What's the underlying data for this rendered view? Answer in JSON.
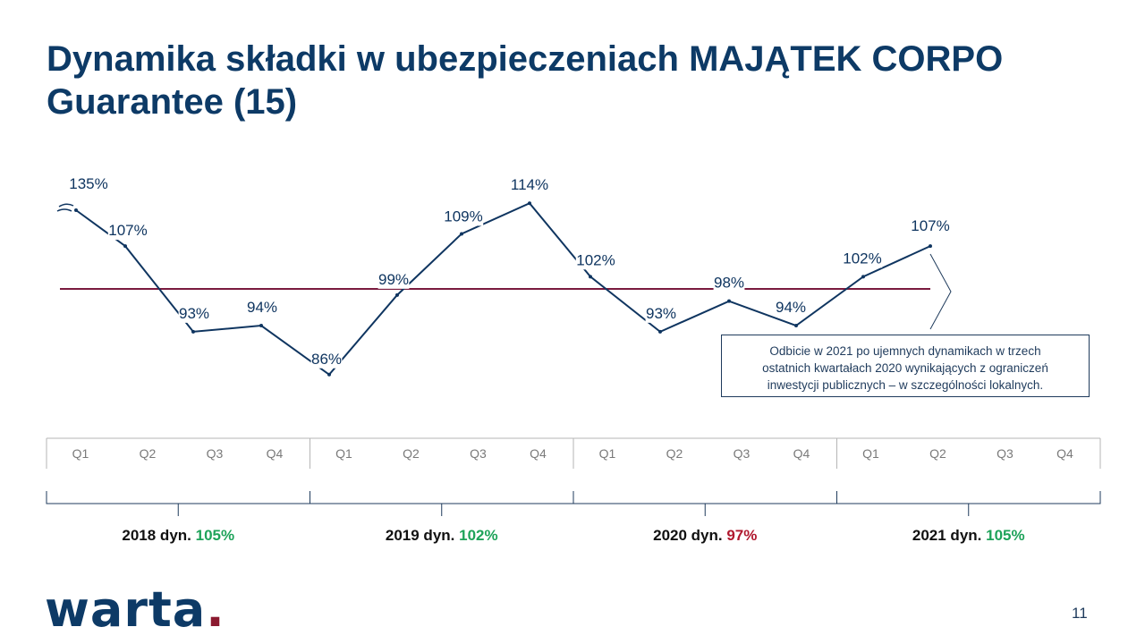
{
  "title": "Dynamika składki w ubezpieczeniach MAJĄTEK CORPO Guarantee (15)",
  "chart_data": {
    "type": "line",
    "x": [
      "Q1",
      "Q2",
      "Q3",
      "Q4",
      "Q1",
      "Q2",
      "Q3",
      "Q4",
      "Q1",
      "Q2",
      "Q3",
      "Q4",
      "Q1",
      "Q2"
    ],
    "values": [
      135,
      107,
      93,
      94,
      86,
      99,
      109,
      114,
      102,
      93,
      98,
      94,
      102,
      107
    ],
    "value_labels": [
      "135%",
      "107%",
      "93%",
      "94%",
      "86%",
      "99%",
      "109%",
      "114%",
      "102%",
      "93%",
      "98%",
      "94%",
      "102%",
      "107%"
    ],
    "axis_break_on_first_point": true,
    "reference_line": 100,
    "quarter_labels": [
      "Q1",
      "Q2",
      "Q3",
      "Q4",
      "Q1",
      "Q2",
      "Q3",
      "Q4",
      "Q1",
      "Q2",
      "Q3",
      "Q4",
      "Q1",
      "Q2",
      "Q3",
      "Q4"
    ],
    "years": [
      {
        "label": "2018 dyn.",
        "value": "105%",
        "color": "#1fa35a"
      },
      {
        "label": "2019 dyn.",
        "value": "102%",
        "color": "#1fa35a"
      },
      {
        "label": "2020 dyn.",
        "value": "97%",
        "color": "#b0182e"
      },
      {
        "label": "2021 dyn.",
        "value": "105%",
        "color": "#1fa35a"
      }
    ],
    "colors": {
      "line": "#0f3560",
      "reference": "#7a1a3e"
    }
  },
  "note": {
    "line1": "Odbicie w 2021 po ujemnych  dynamikach  w trzech",
    "line2": "ostatnich kwartałach 2020 wynikających  z ograniczeń",
    "line3": "inwestycji  publicznych  – w szczególności lokalnych."
  },
  "logo": {
    "text": "warta",
    "dot": "."
  },
  "page_number": "11"
}
